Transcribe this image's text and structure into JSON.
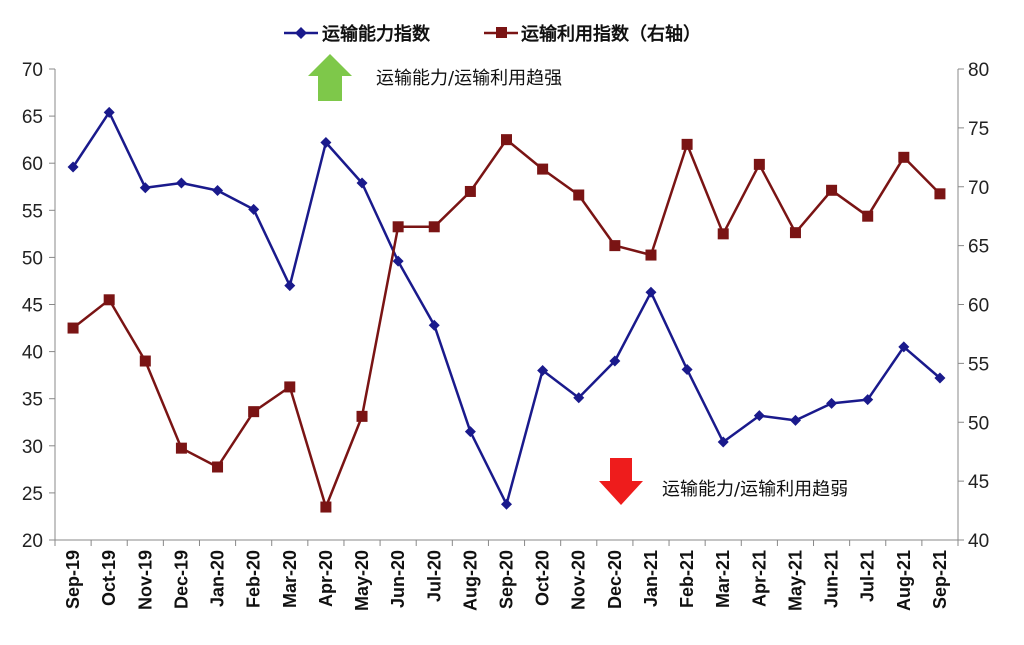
{
  "chart_data": {
    "type": "line",
    "title": "",
    "categories": [
      "Sep-19",
      "Oct-19",
      "Nov-19",
      "Dec-19",
      "Jan-20",
      "Feb-20",
      "Mar-20",
      "Apr-20",
      "May-20",
      "Jun-20",
      "Jul-20",
      "Aug-20",
      "Sep-20",
      "Oct-20",
      "Nov-20",
      "Dec-20",
      "Jan-21",
      "Feb-21",
      "Mar-21",
      "Apr-21",
      "May-21",
      "Jun-21",
      "Jul-21",
      "Aug-21",
      "Sep-21"
    ],
    "series": [
      {
        "name": "运输能力指数",
        "axis": "left",
        "color": "#1a1a8c",
        "marker": "diamond",
        "values": [
          59.6,
          65.4,
          57.4,
          57.9,
          57.1,
          55.1,
          47.0,
          62.2,
          57.9,
          49.6,
          42.8,
          31.5,
          23.8,
          38.0,
          35.1,
          39.0,
          46.3,
          38.1,
          30.4,
          33.2,
          32.7,
          34.5,
          34.9,
          40.5,
          37.2
        ]
      },
      {
        "name": "运输利用指数（右轴）",
        "axis": "right",
        "color": "#7a1414",
        "marker": "square",
        "values": [
          58.0,
          60.4,
          55.2,
          47.8,
          46.2,
          50.9,
          53.0,
          42.8,
          50.5,
          66.6,
          66.6,
          69.6,
          74.0,
          71.5,
          69.3,
          65.0,
          64.2,
          73.6,
          66.0,
          71.9,
          66.1,
          69.7,
          67.5,
          72.5,
          69.4
        ]
      }
    ],
    "y_left": {
      "min": 20,
      "max": 70,
      "step": 5,
      "ticks": [
        "20",
        "25",
        "30",
        "35",
        "40",
        "45",
        "50",
        "55",
        "60",
        "65",
        "70"
      ]
    },
    "y_right": {
      "min": 40,
      "max": 80,
      "step": 5,
      "ticks": [
        "40",
        "45",
        "50",
        "55",
        "60",
        "65",
        "70",
        "75",
        "80"
      ]
    },
    "grid": false,
    "legend_position": "top-center",
    "annotations": {
      "up_text": "运输能力/运输利用趋强",
      "down_text": "运输能力/运输利用趋弱",
      "up_color": "#7ec84a",
      "down_color": "#ee1c1c"
    }
  }
}
